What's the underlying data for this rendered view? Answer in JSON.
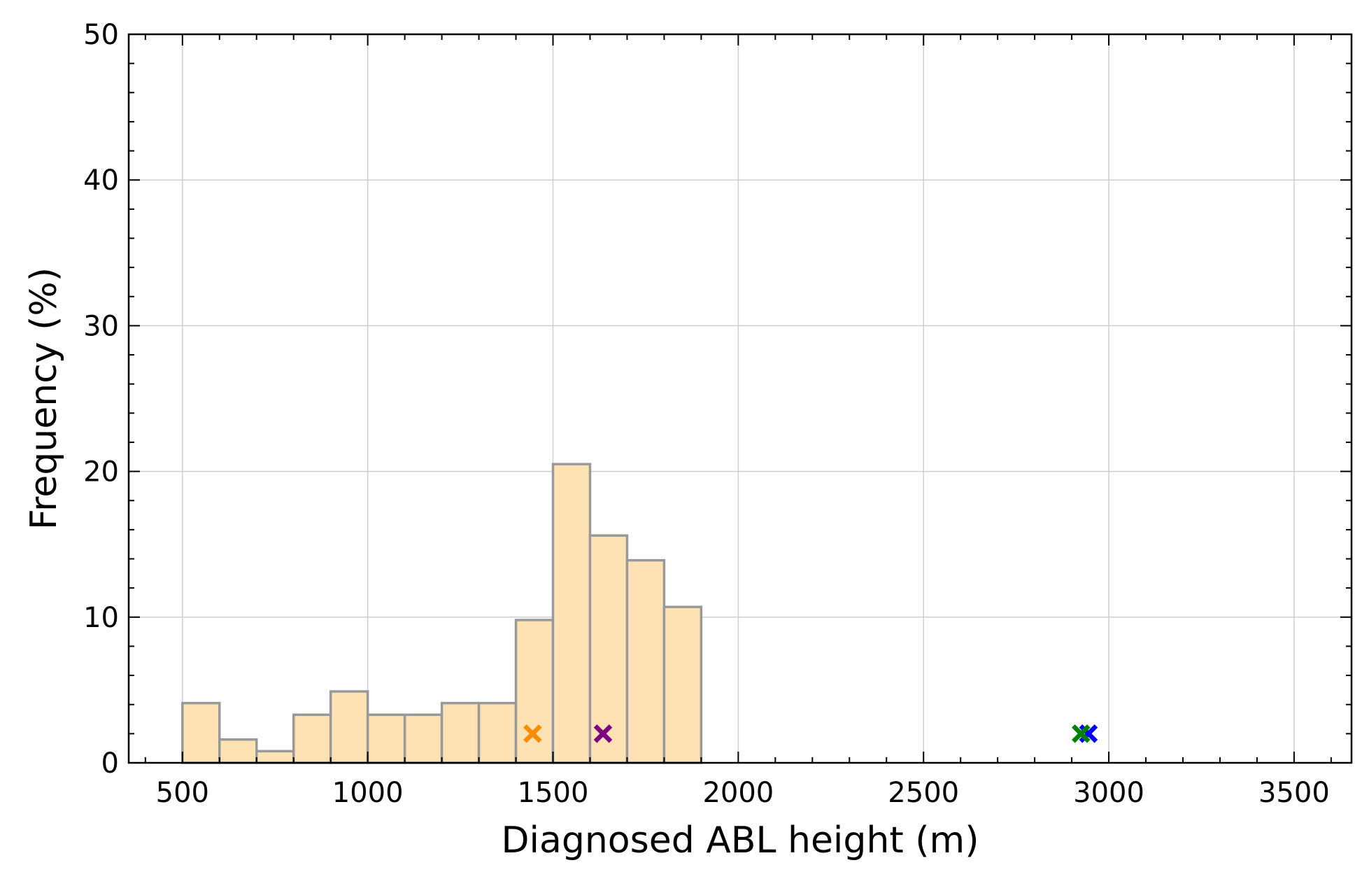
{
  "chart_data": {
    "type": "bar",
    "xlabel": "Diagnosed ABL height (m)",
    "ylabel": "Frequency (%)",
    "xlim": [
      355,
      3655
    ],
    "ylim": [
      0,
      50
    ],
    "xticks": [
      500,
      1000,
      1500,
      2000,
      2500,
      3000,
      3500
    ],
    "yticks": [
      0,
      10,
      20,
      30,
      40,
      50
    ],
    "grid": true,
    "bin_width": 100,
    "bins": [
      {
        "start": 500,
        "end": 600,
        "value": 4.1
      },
      {
        "start": 600,
        "end": 700,
        "value": 1.6
      },
      {
        "start": 700,
        "end": 800,
        "value": 0.8
      },
      {
        "start": 800,
        "end": 900,
        "value": 3.3
      },
      {
        "start": 900,
        "end": 1000,
        "value": 4.9
      },
      {
        "start": 1000,
        "end": 1100,
        "value": 3.3
      },
      {
        "start": 1100,
        "end": 1200,
        "value": 3.3
      },
      {
        "start": 1200,
        "end": 1300,
        "value": 4.1
      },
      {
        "start": 1300,
        "end": 1400,
        "value": 4.1
      },
      {
        "start": 1400,
        "end": 1500,
        "value": 9.8
      },
      {
        "start": 1500,
        "end": 1600,
        "value": 20.5
      },
      {
        "start": 1600,
        "end": 1700,
        "value": 15.6
      },
      {
        "start": 1700,
        "end": 1800,
        "value": 13.9
      },
      {
        "start": 1800,
        "end": 1900,
        "value": 10.7
      }
    ],
    "markers": [
      {
        "x": 1445,
        "y": 2,
        "color": "#ff8c00"
      },
      {
        "x": 1635,
        "y": 2,
        "color": "#800080"
      },
      {
        "x": 2945,
        "y": 2,
        "color": "#0000ff"
      },
      {
        "x": 2925,
        "y": 2,
        "color": "#008000"
      }
    ],
    "colors": {
      "bar_fill": "#ffe2b3",
      "bar_edge": "#999999",
      "grid": "#cfcfcf",
      "axis": "#000000"
    }
  }
}
